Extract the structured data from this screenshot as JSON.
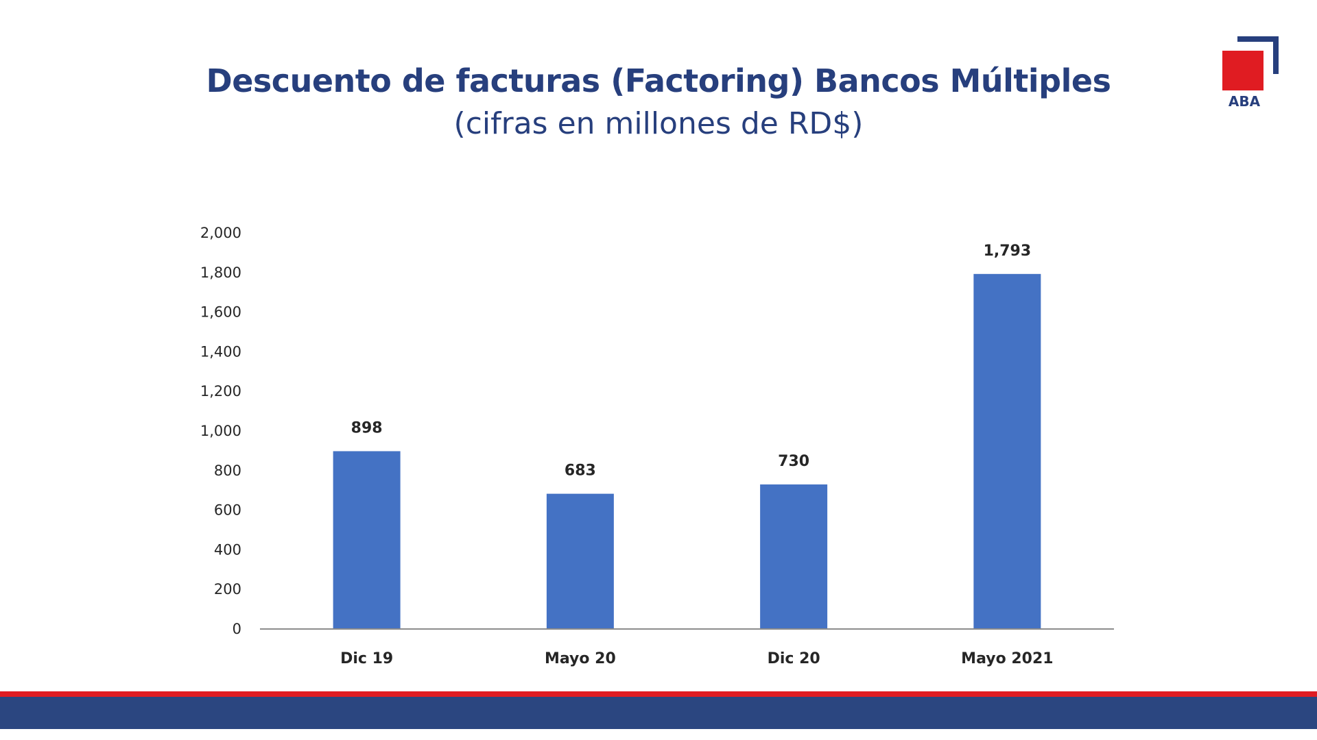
{
  "header": {
    "title": "Descuento de facturas (Factoring) Bancos Múltiples",
    "subtitle": "(cifras en millones de RD$)"
  },
  "logo": {
    "text": "ABA",
    "colors": {
      "square": "#e01c22",
      "corner": "#273f7d"
    }
  },
  "chart_data": {
    "type": "bar",
    "title": "Descuento de facturas (Factoring) Bancos Múltiples",
    "subtitle": "(cifras en millones de RD$)",
    "categories": [
      "Dic 19",
      "Mayo 20",
      "Dic 20",
      "Mayo 2021"
    ],
    "values": [
      898,
      683,
      730,
      1793
    ],
    "value_labels": [
      "898",
      "683",
      "730",
      "1,793"
    ],
    "ylim": [
      0,
      2000
    ],
    "yticks": [
      0,
      200,
      400,
      600,
      800,
      1000,
      1200,
      1400,
      1600,
      1800,
      2000
    ],
    "ytick_labels": [
      "0",
      "200",
      "400",
      "600",
      "800",
      "1,000",
      "1,200",
      "1,400",
      "1,600",
      "1,800",
      "2,000"
    ],
    "xlabel": "",
    "ylabel": "",
    "grid": false,
    "legend": "none",
    "bar_color": "#4472c4"
  },
  "colors": {
    "title": "#273f7d",
    "band_red": "#e01c22",
    "band_blue": "#2b4680"
  }
}
